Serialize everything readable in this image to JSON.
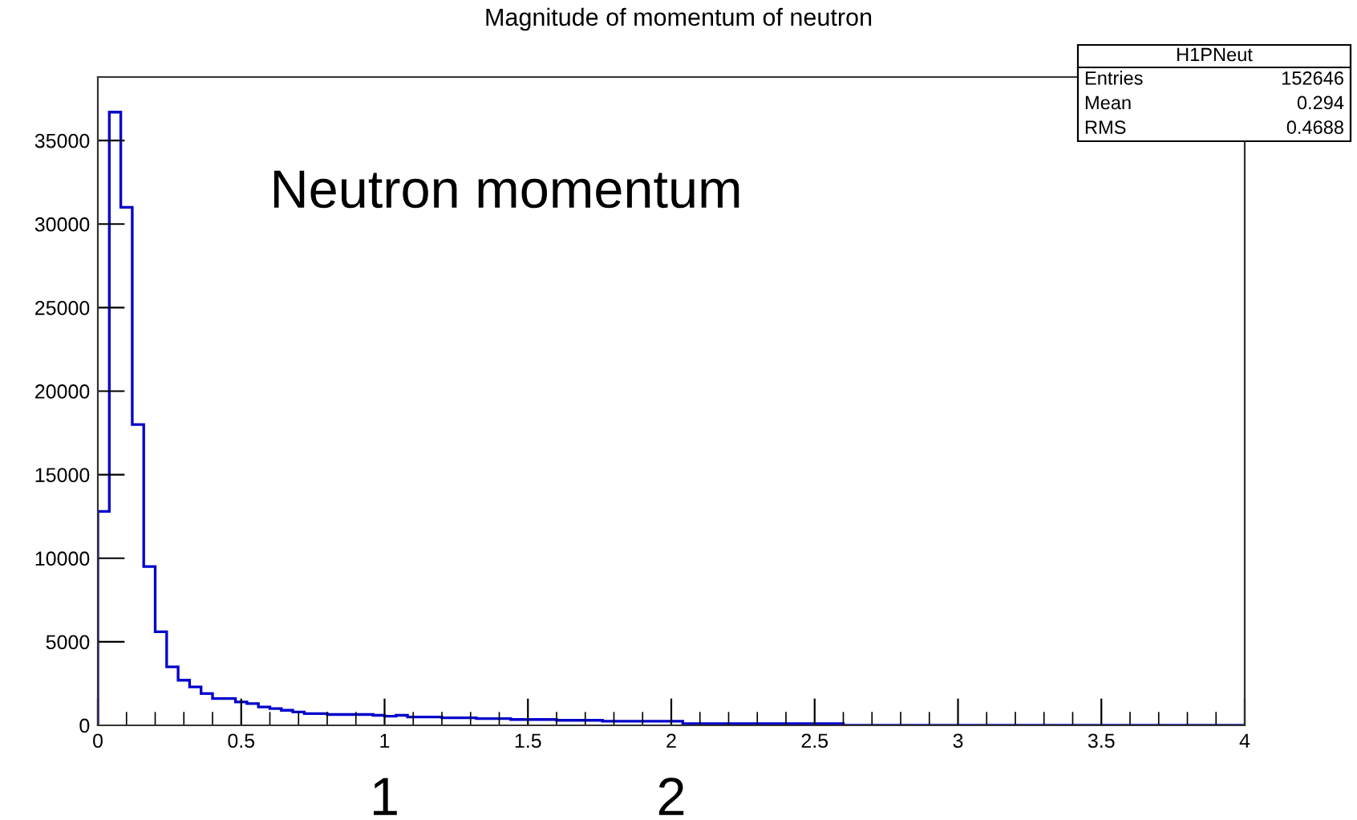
{
  "chart_data": {
    "type": "histogram",
    "title": "Magnitude of momentum of neutron",
    "bins": [
      0,
      0.04,
      0.08,
      0.12,
      0.16,
      0.2,
      0.24,
      0.28,
      0.32,
      0.36,
      0.4,
      0.48,
      0.52,
      0.56,
      0.6,
      0.64,
      0.68,
      0.72,
      0.8,
      0.96,
      1,
      1.04,
      1.08,
      1.2,
      1.32,
      1.44,
      1.6,
      1.76,
      2.04,
      2.6,
      4
    ],
    "values": [
      12800,
      36700,
      31000,
      18000,
      9500,
      5600,
      3500,
      2700,
      2300,
      1900,
      1600,
      1400,
      1300,
      1100,
      1000,
      900,
      800,
      700,
      650,
      600,
      550,
      600,
      500,
      450,
      400,
      350,
      300,
      250,
      100,
      0
    ],
    "color": "#0000cc",
    "xlim": [
      0,
      4
    ],
    "xticks": [
      0,
      0.5,
      1,
      1.5,
      2,
      2.5,
      3,
      3.5,
      4
    ],
    "ylim": [
      0,
      38800
    ],
    "yticks": [
      0,
      5000,
      10000,
      15000,
      20000,
      25000,
      30000,
      35000
    ],
    "grid": false,
    "annotations": [
      "Neutron momentum",
      "1",
      "2",
      "H1PNeut",
      "Entries",
      "152646",
      "Mean",
      "0.294",
      "RMS",
      "0.4688"
    ]
  }
}
